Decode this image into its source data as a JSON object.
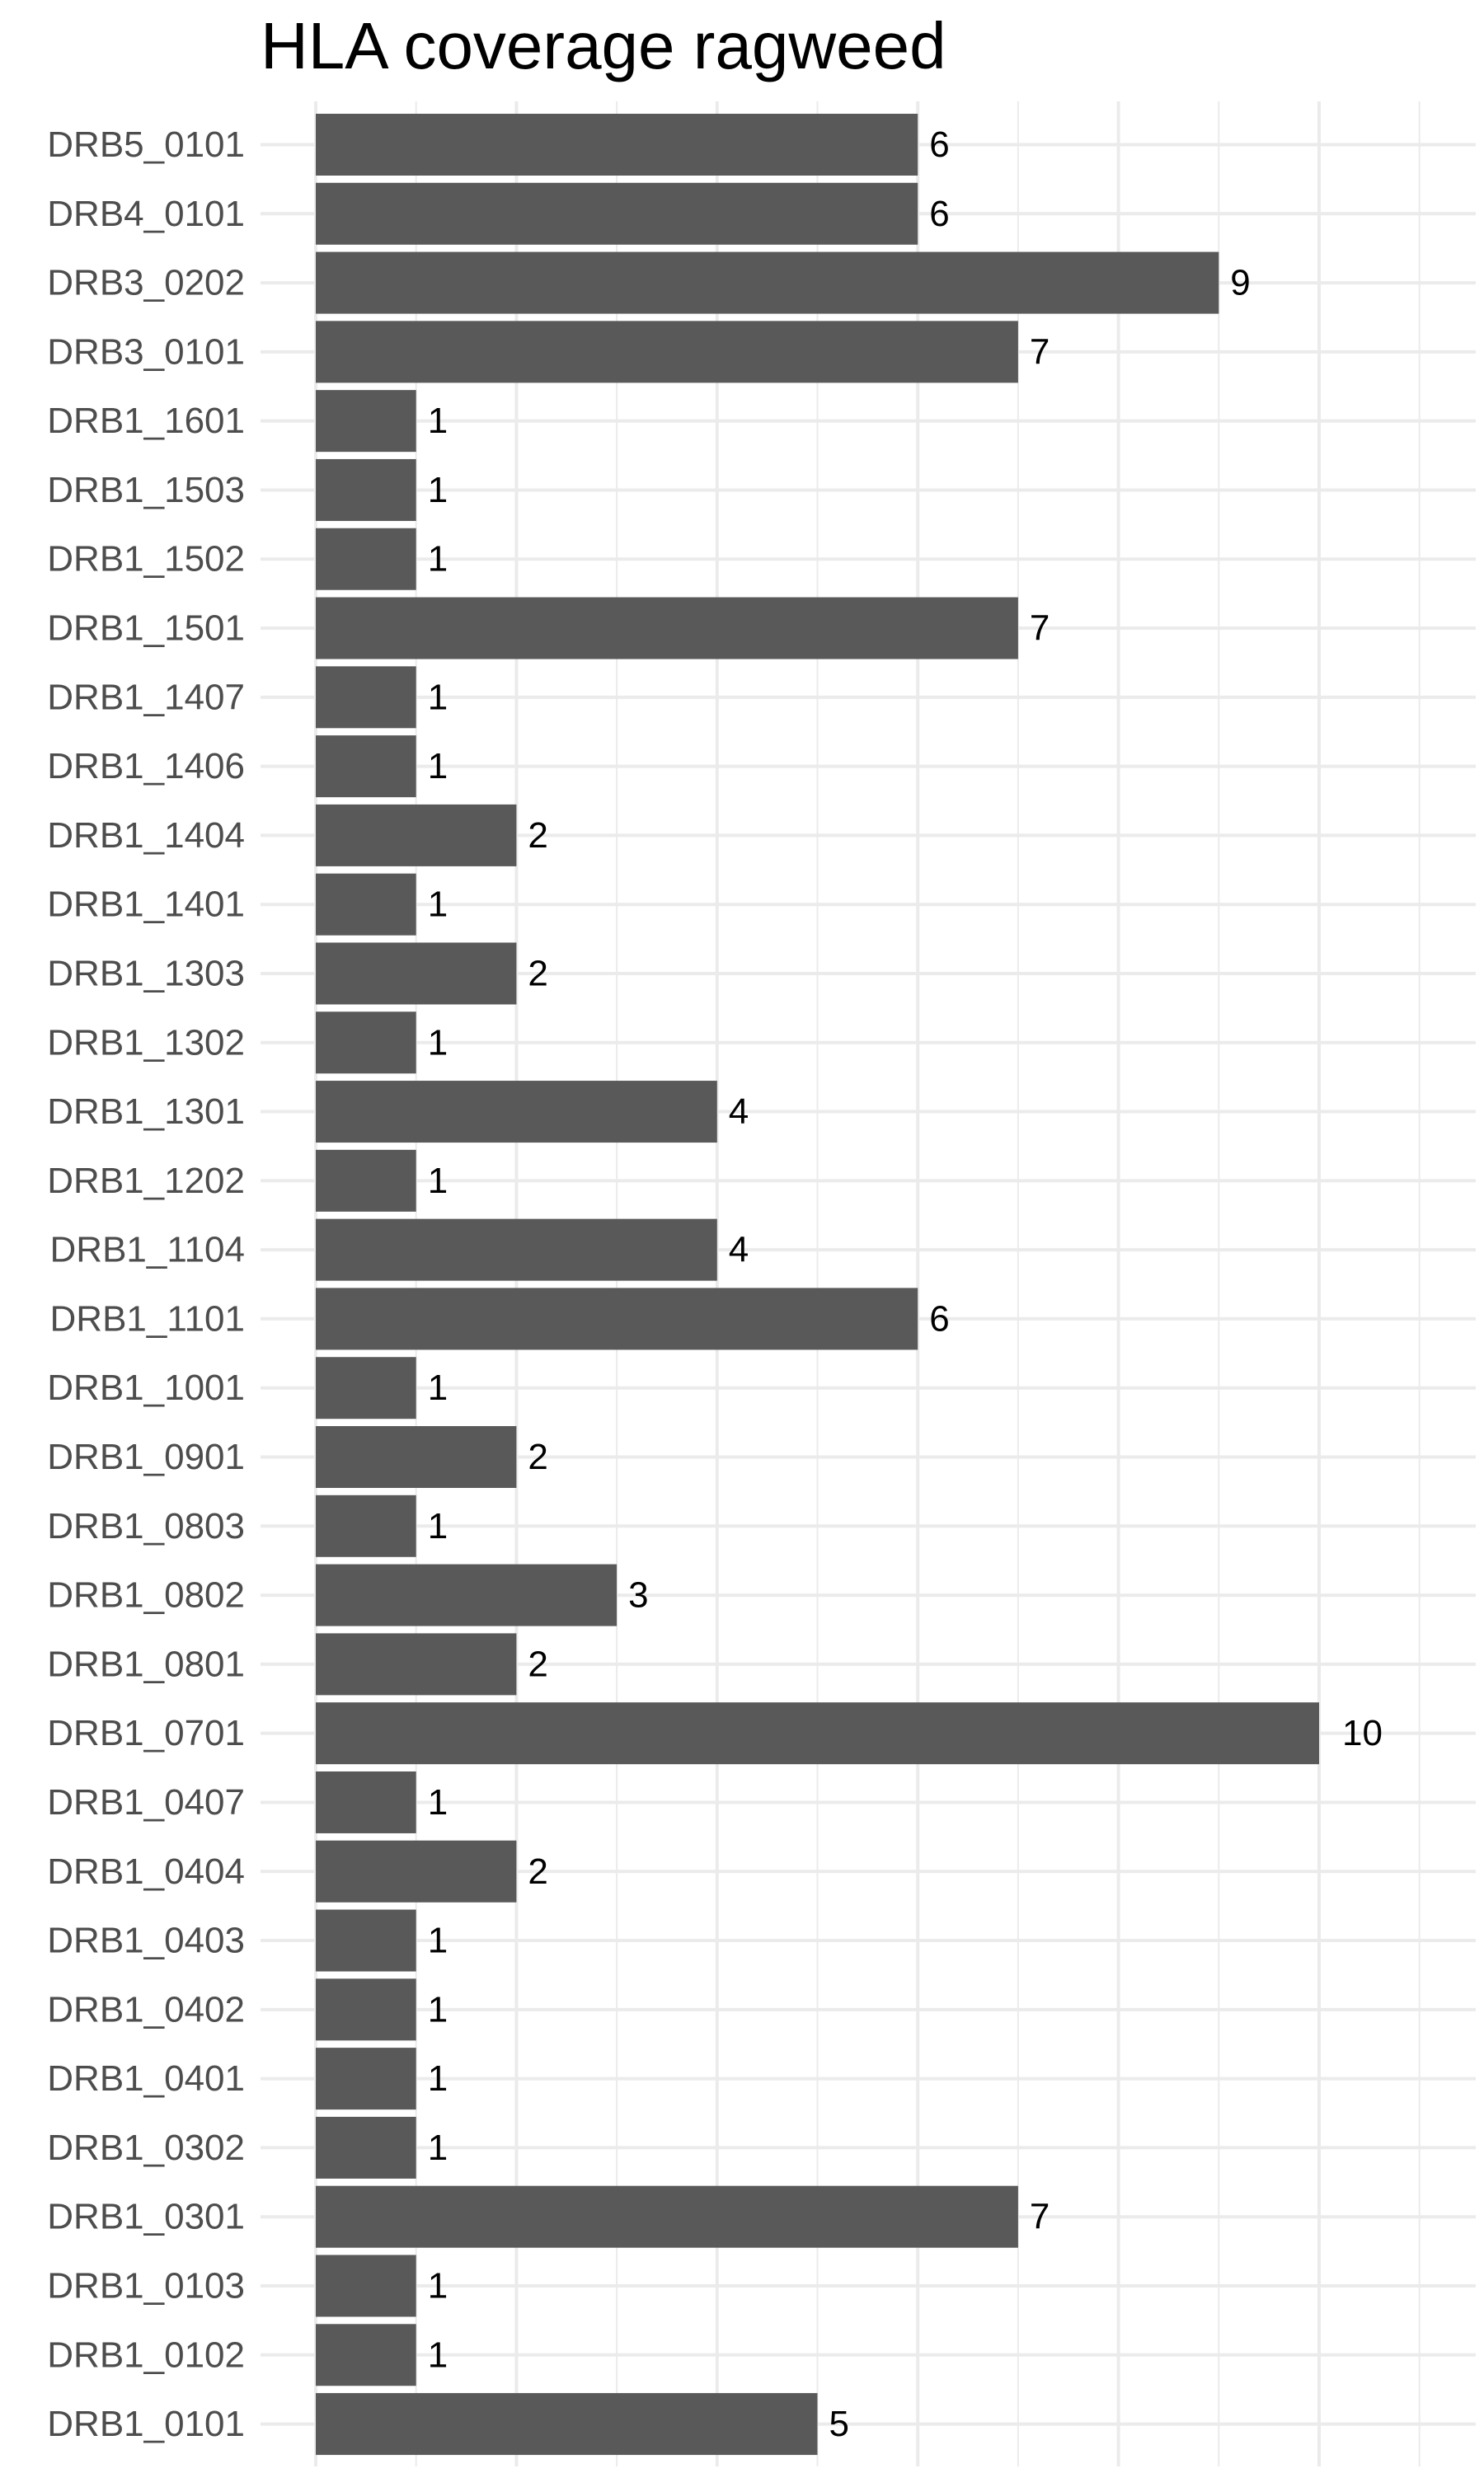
{
  "chart_data": {
    "type": "bar",
    "orientation": "horizontal",
    "title": "HLA coverage ragweed",
    "xlabel": "",
    "ylabel": "",
    "categories": [
      "DRB5_0101",
      "DRB4_0101",
      "DRB3_0202",
      "DRB3_0101",
      "DRB1_1601",
      "DRB1_1503",
      "DRB1_1502",
      "DRB1_1501",
      "DRB1_1407",
      "DRB1_1406",
      "DRB1_1404",
      "DRB1_1401",
      "DRB1_1303",
      "DRB1_1302",
      "DRB1_1301",
      "DRB1_1202",
      "DRB1_1104",
      "DRB1_1101",
      "DRB1_1001",
      "DRB1_0901",
      "DRB1_0803",
      "DRB1_0802",
      "DRB1_0801",
      "DRB1_0701",
      "DRB1_0407",
      "DRB1_0404",
      "DRB1_0403",
      "DRB1_0402",
      "DRB1_0401",
      "DRB1_0302",
      "DRB1_0301",
      "DRB1_0103",
      "DRB1_0102",
      "DRB1_0101"
    ],
    "values": [
      6,
      6,
      9,
      7,
      1,
      1,
      1,
      7,
      1,
      1,
      2,
      1,
      2,
      1,
      4,
      1,
      4,
      6,
      1,
      2,
      1,
      3,
      2,
      10,
      1,
      2,
      1,
      1,
      1,
      1,
      7,
      1,
      1,
      5
    ],
    "xlim": [
      0,
      11.5
    ],
    "grid": true,
    "x_tick_labels_shown": false,
    "bar_color": "#595959",
    "grid_color": "#ebebeb"
  }
}
